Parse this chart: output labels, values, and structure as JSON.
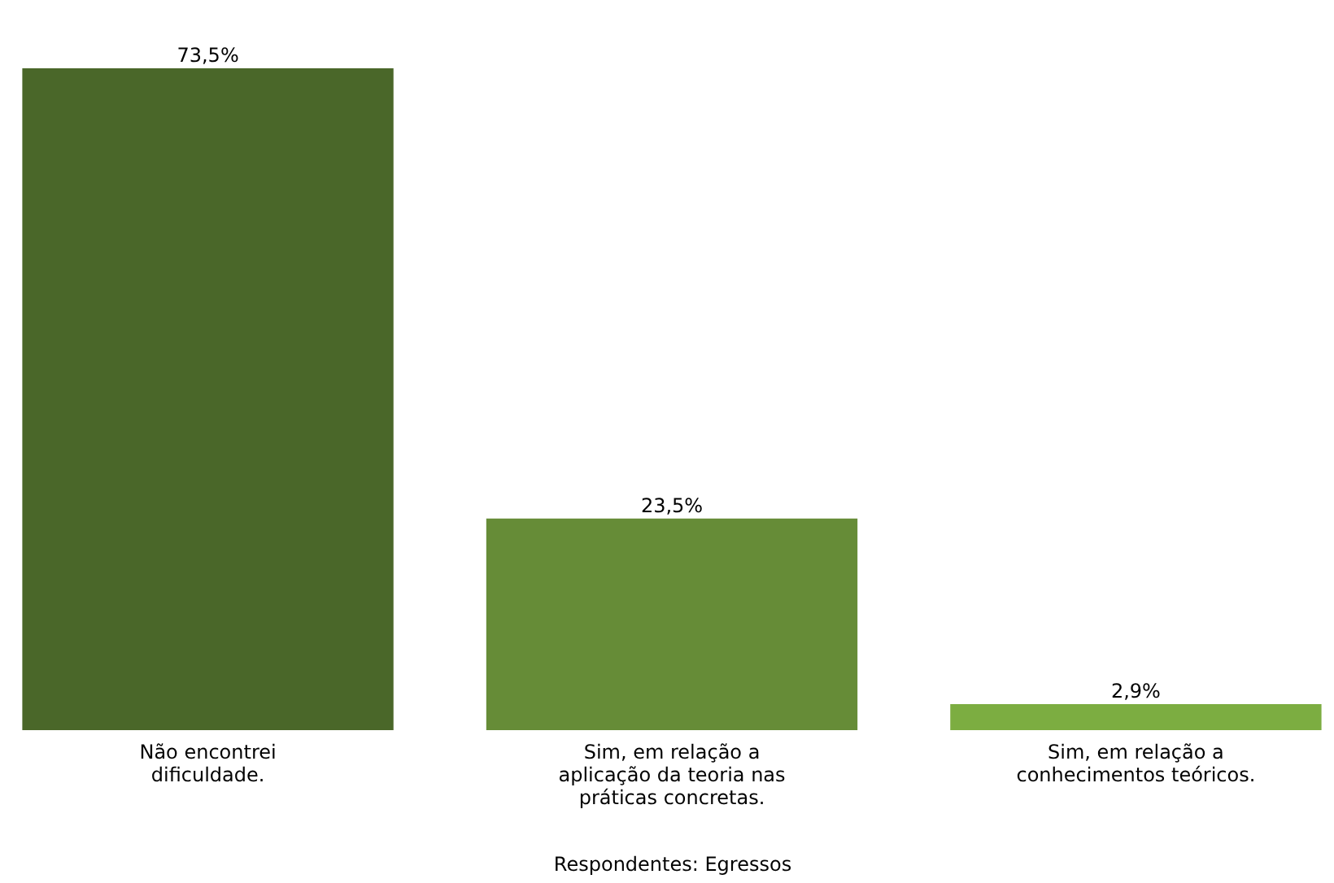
{
  "chart_data": {
    "type": "bar",
    "categories": [
      "Não encontrei dificuldade.",
      "Sim, em relação a aplicação da teoria nas práticas concretas.",
      "Sim, em relação a conhecimentos teóricos."
    ],
    "values": [
      73.5,
      23.5,
      2.9
    ],
    "colors": [
      "#4a6729",
      "#668c37",
      "#7cad41"
    ],
    "value_labels": [
      "73,5%",
      "23,5%",
      "2,9%"
    ],
    "xlabel": "Respondentes: Egressos"
  }
}
